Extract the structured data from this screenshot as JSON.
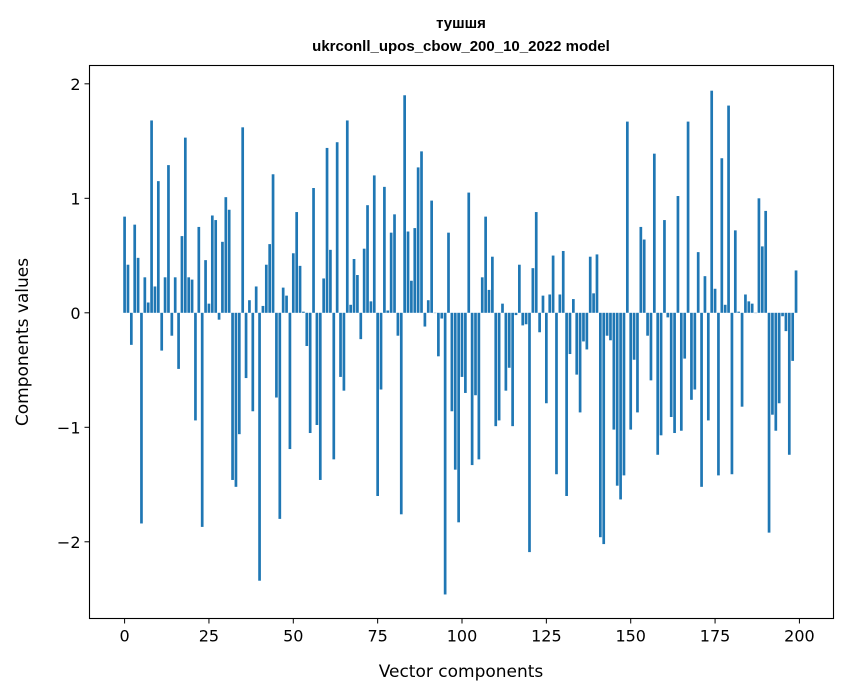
{
  "chart_data": {
    "type": "bar",
    "title": [
      "тушшя",
      "ukrconll_upos_cbow_200_10_2022 model"
    ],
    "xlabel": "Vector components",
    "ylabel": "Components values",
    "xlim": [
      -10.4,
      210.1
    ],
    "ylim": [
      -2.67,
      2.16
    ],
    "xticks": [
      0,
      25,
      50,
      75,
      100,
      125,
      150,
      175,
      200
    ],
    "xtick_labels": [
      "0",
      "25",
      "50",
      "75",
      "100",
      "125",
      "150",
      "175",
      "200"
    ],
    "yticks": [
      -2,
      -1,
      0,
      1,
      2
    ],
    "ytick_labels": [
      "−2",
      "−1",
      "0",
      "1",
      "2"
    ],
    "grid": false,
    "color": "#1f77b4",
    "values": [
      0.84,
      0.42,
      -0.28,
      0.77,
      0.48,
      -1.84,
      0.31,
      0.09,
      1.68,
      0.23,
      1.15,
      -0.33,
      0.31,
      1.29,
      -0.2,
      0.31,
      -0.49,
      0.67,
      1.53,
      0.31,
      0.29,
      -0.94,
      0.75,
      -1.87,
      0.46,
      0.08,
      0.85,
      0.81,
      -0.06,
      0.62,
      1.01,
      0.9,
      -1.46,
      -1.52,
      -1.06,
      1.62,
      -0.57,
      0.11,
      -0.86,
      0.23,
      -2.34,
      0.06,
      0.42,
      0.6,
      1.21,
      -0.74,
      -1.8,
      0.22,
      0.15,
      -1.19,
      0.52,
      0.88,
      0.41,
      0.01,
      -0.29,
      -1.05,
      1.09,
      -0.98,
      -1.46,
      0.3,
      1.44,
      0.55,
      -1.28,
      1.49,
      -0.56,
      -0.68,
      1.68,
      0.07,
      0.47,
      0.33,
      -0.23,
      0.56,
      0.94,
      0.1,
      1.2,
      -1.6,
      -0.67,
      1.1,
      0.02,
      0.7,
      0.86,
      -0.2,
      -1.76,
      1.9,
      0.71,
      0.28,
      0.74,
      1.27,
      1.41,
      -0.12,
      0.11,
      0.98,
      0.0,
      -0.38,
      -0.05,
      -2.46,
      0.7,
      -0.86,
      -1.37,
      -1.83,
      -0.56,
      -0.7,
      1.05,
      -1.33,
      -0.72,
      -1.28,
      0.31,
      0.84,
      0.2,
      0.49,
      -0.99,
      -0.94,
      0.08,
      -0.68,
      -0.48,
      -0.99,
      -0.02,
      0.42,
      -0.11,
      -0.1,
      -2.09,
      0.39,
      0.88,
      -0.17,
      0.15,
      -0.79,
      0.16,
      0.5,
      -1.41,
      0.16,
      0.54,
      -1.6,
      -0.36,
      0.12,
      -0.54,
      -0.87,
      -0.25,
      -0.32,
      0.49,
      0.17,
      0.51,
      -1.96,
      -2.02,
      -0.2,
      -0.24,
      -1.02,
      -1.51,
      -1.63,
      -1.42,
      1.67,
      -1.02,
      -0.41,
      -0.87,
      0.75,
      0.64,
      -0.2,
      -0.59,
      1.39,
      -1.24,
      -1.07,
      0.81,
      -0.04,
      -0.91,
      -1.05,
      1.02,
      -1.03,
      -0.4,
      1.67,
      -0.76,
      -0.67,
      0.53,
      -1.52,
      0.32,
      -0.94,
      1.94,
      0.21,
      -1.42,
      1.35,
      0.07,
      1.81,
      -1.41,
      0.72,
      0.01,
      -0.82,
      0.16,
      0.1,
      0.08,
      0.0,
      1.0,
      0.58,
      0.89,
      -1.92,
      -0.89,
      -1.03,
      -0.79,
      -0.03,
      -0.16,
      -1.24,
      -0.42,
      0.37
    ]
  }
}
